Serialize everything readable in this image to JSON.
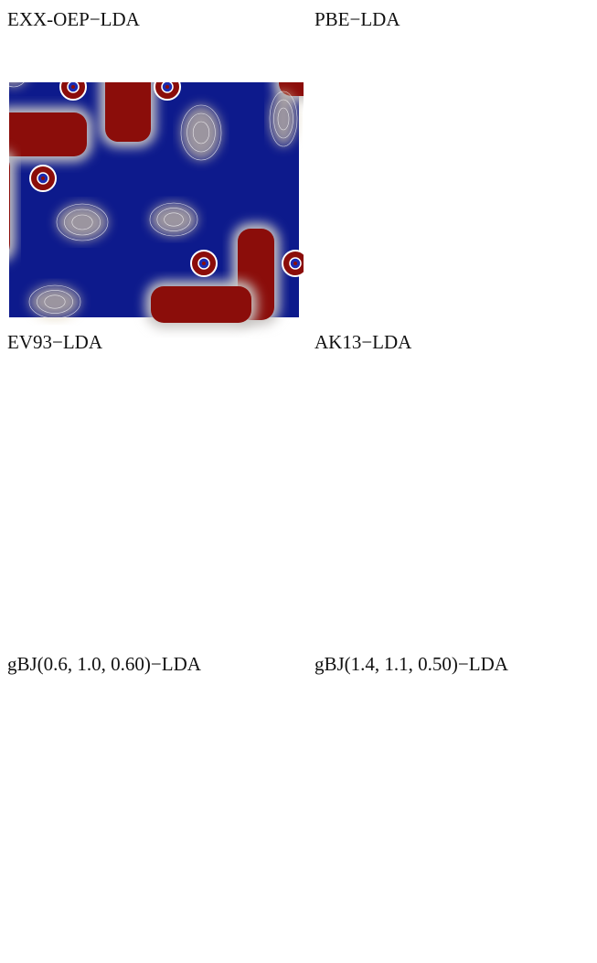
{
  "panels": [
    {
      "title": "EXX-OEP−LDA"
    },
    {
      "title": "PBE−LDA"
    },
    {
      "title": "EV93−LDA"
    },
    {
      "title": "AK13−LDA"
    },
    {
      "title": "gBJ(0.6, 1.0, 0.60)−LDA"
    },
    {
      "title": "gBJ(1.4, 1.1, 0.50)−LDA"
    }
  ]
}
